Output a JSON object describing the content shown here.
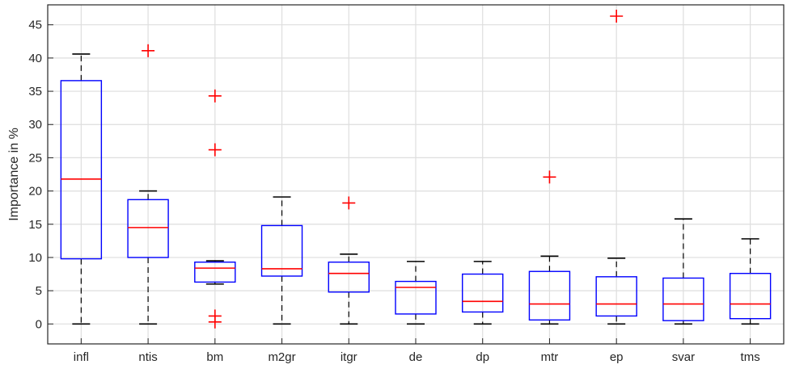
{
  "chart_data": {
    "type": "boxplot",
    "title": "",
    "xlabel": "",
    "ylabel": "Importance in %",
    "ylim": [
      -3,
      48
    ],
    "yticks": [
      0,
      5,
      10,
      15,
      20,
      25,
      30,
      35,
      40,
      45
    ],
    "grid": true,
    "categories": [
      "infl",
      "ntis",
      "bm",
      "m2gr",
      "itgr",
      "de",
      "dp",
      "mtr",
      "ep",
      "svar",
      "tms"
    ],
    "boxes": [
      {
        "label": "infl",
        "whisker_low": 0,
        "q1": 9.8,
        "median": 21.8,
        "q3": 36.6,
        "whisker_high": 40.6,
        "outliers": []
      },
      {
        "label": "ntis",
        "whisker_low": 0,
        "q1": 10.0,
        "median": 14.5,
        "q3": 18.7,
        "whisker_high": 20.0,
        "outliers": [
          41.1
        ]
      },
      {
        "label": "bm",
        "whisker_low": 6.0,
        "q1": 6.3,
        "median": 8.4,
        "q3": 9.3,
        "whisker_high": 9.5,
        "outliers": [
          34.3,
          26.2,
          1.2,
          0.3
        ]
      },
      {
        "label": "m2gr",
        "whisker_low": 0,
        "q1": 7.2,
        "median": 8.3,
        "q3": 14.8,
        "whisker_high": 19.1,
        "outliers": []
      },
      {
        "label": "itgr",
        "whisker_low": 0,
        "q1": 4.8,
        "median": 7.6,
        "q3": 9.3,
        "whisker_high": 10.5,
        "outliers": [
          18.2
        ]
      },
      {
        "label": "de",
        "whisker_low": 0,
        "q1": 1.5,
        "median": 5.5,
        "q3": 6.4,
        "whisker_high": 9.4,
        "outliers": []
      },
      {
        "label": "dp",
        "whisker_low": 0,
        "q1": 1.8,
        "median": 3.4,
        "q3": 7.5,
        "whisker_high": 9.4,
        "outliers": []
      },
      {
        "label": "mtr",
        "whisker_low": 0,
        "q1": 0.6,
        "median": 3.0,
        "q3": 7.9,
        "whisker_high": 10.2,
        "outliers": [
          22.1
        ]
      },
      {
        "label": "ep",
        "whisker_low": 0,
        "q1": 1.2,
        "median": 3.0,
        "q3": 7.1,
        "whisker_high": 9.9,
        "outliers": [
          46.3
        ]
      },
      {
        "label": "svar",
        "whisker_low": 0,
        "q1": 0.5,
        "median": 3.0,
        "q3": 6.9,
        "whisker_high": 15.8,
        "outliers": []
      },
      {
        "label": "tms",
        "whisker_low": 0,
        "q1": 0.8,
        "median": 3.0,
        "q3": 7.6,
        "whisker_high": 12.8,
        "outliers": []
      }
    ],
    "colors": {
      "box": "#0000ff",
      "median": "#ff0000",
      "outlier": "#ff0000",
      "whisker": "#000000",
      "grid": "#dedede",
      "axis": "#262626"
    }
  }
}
